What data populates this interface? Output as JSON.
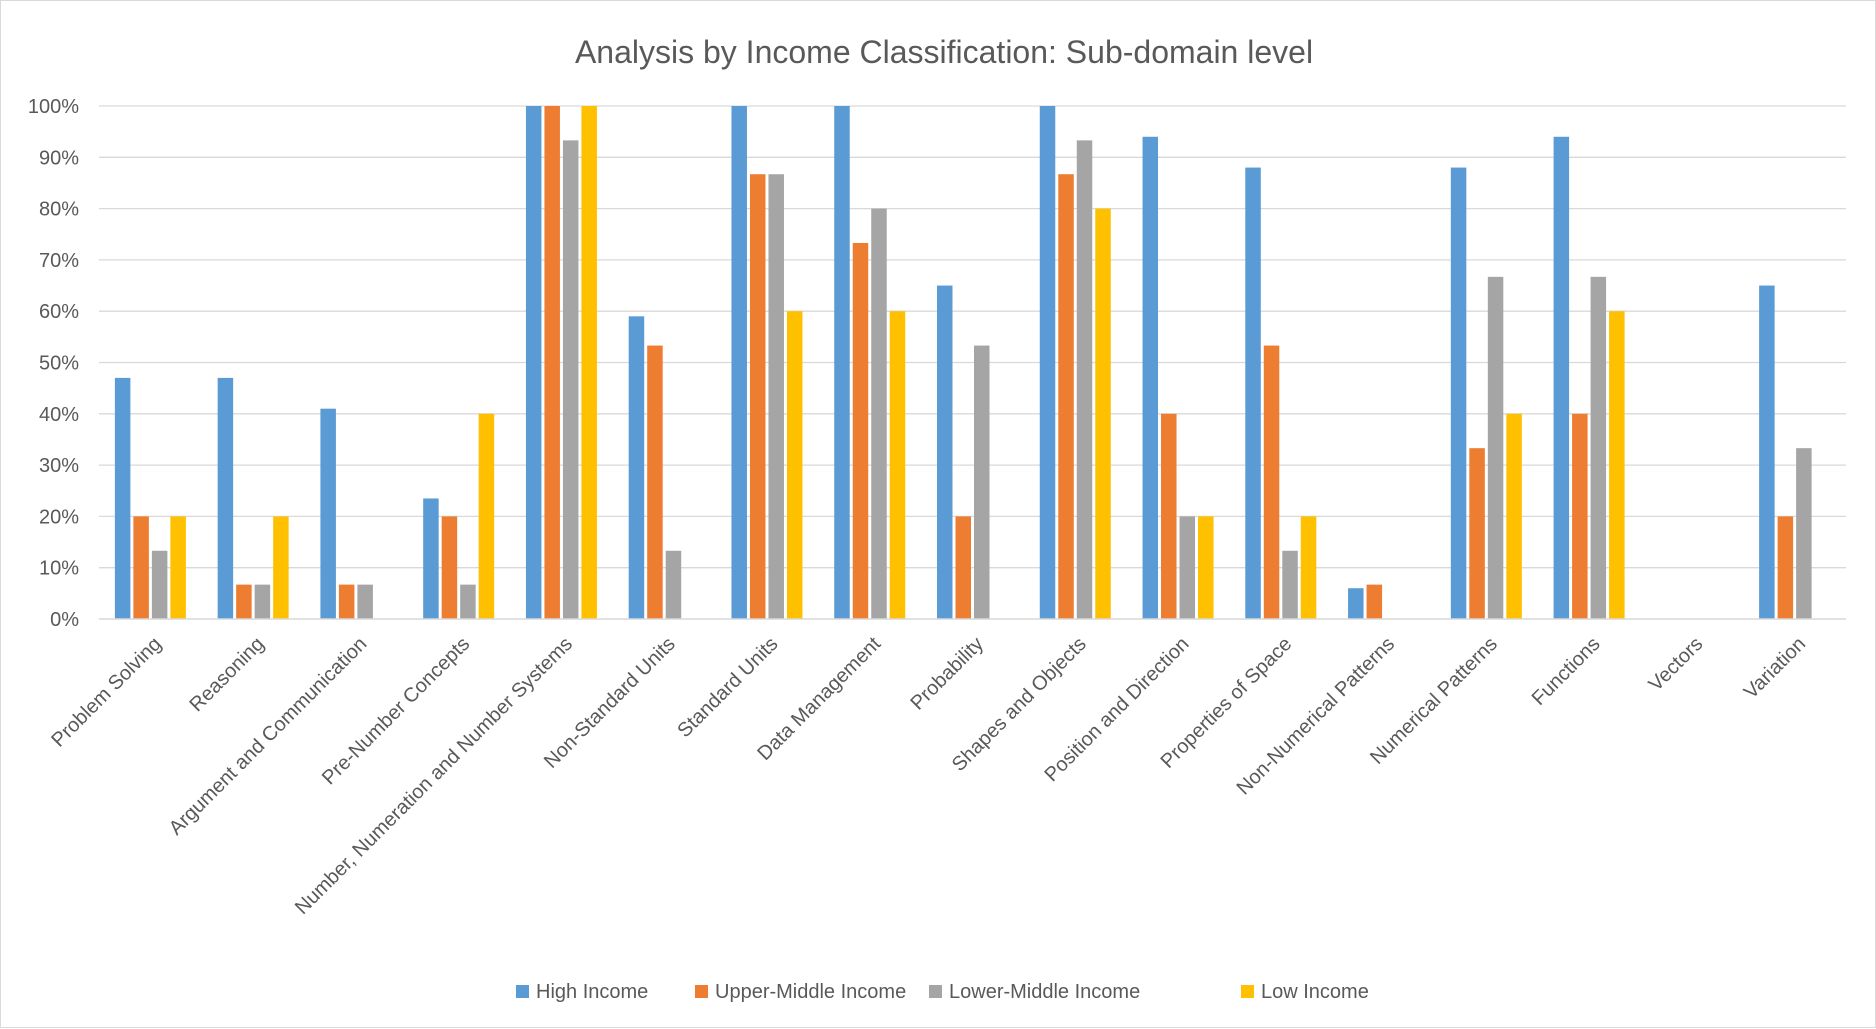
{
  "chart_data": {
    "type": "bar",
    "title": "Analysis by Income Classification: Sub-domain level",
    "xlabel": "",
    "ylabel": "",
    "ylim": [
      0,
      100
    ],
    "ytick_labels": [
      "0%",
      "10%",
      "20%",
      "30%",
      "40%",
      "50%",
      "60%",
      "70%",
      "80%",
      "90%",
      "100%"
    ],
    "grid": true,
    "legend_position": "bottom",
    "categories": [
      "Problem Solving",
      "Reasoning",
      "Argument and Communication",
      "Pre-Number Concepts",
      "Number, Numeration and Number Systems",
      "Non-Standard Units",
      "Standard Units",
      "Data Management",
      "Probability",
      "Shapes and Objects",
      "Position and Direction",
      "Properties of Space",
      "Non-Numerical Patterns",
      "Numerical Patterns",
      "Functions",
      "Vectors",
      "Variation"
    ],
    "series": [
      {
        "name": "High Income",
        "color": "#5b9bd5",
        "values": [
          47,
          47,
          41,
          23.5,
          100,
          59,
          100,
          100,
          65,
          100,
          94,
          88,
          6,
          88,
          94,
          0,
          65
        ]
      },
      {
        "name": "Upper-Middle Income",
        "color": "#ed7d31",
        "values": [
          20,
          6.7,
          6.7,
          20,
          100,
          53.3,
          86.7,
          73.3,
          20,
          86.7,
          40,
          53.3,
          6.7,
          33.3,
          40,
          0,
          20
        ]
      },
      {
        "name": "Lower-Middle Income",
        "color": "#a5a5a5",
        "values": [
          13.3,
          6.7,
          6.7,
          6.7,
          93.3,
          13.3,
          86.7,
          80,
          53.3,
          93.3,
          20,
          13.3,
          0,
          66.7,
          66.7,
          0,
          33.3
        ]
      },
      {
        "name": "Low Income",
        "color": "#ffc000",
        "values": [
          20,
          20,
          0,
          40,
          100,
          0,
          60,
          60,
          0,
          80,
          20,
          20,
          0,
          40,
          60,
          0,
          0
        ]
      }
    ]
  }
}
